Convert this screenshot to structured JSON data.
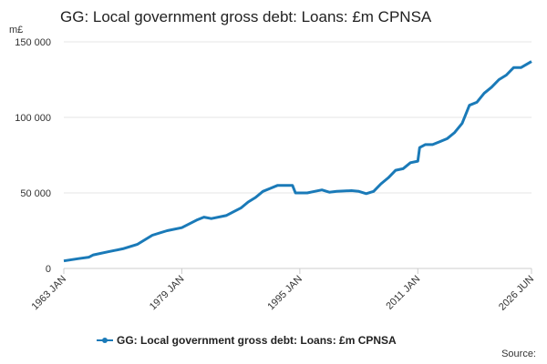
{
  "chart_data": {
    "type": "line",
    "title": "GG: Local government gross debt: Loans: £m CPNSA",
    "y_label": "m£",
    "source": "Source:",
    "x": [
      "1963 JAN",
      "1965 JAN",
      "1966 JUN",
      "1967 JAN",
      "1969 JAN",
      "1971 JAN",
      "1973 JAN",
      "1975 JAN",
      "1977 JAN",
      "1979 JAN",
      "1981 JAN",
      "1982 JAN",
      "1983 JAN",
      "1985 JAN",
      "1987 JAN",
      "1988 JAN",
      "1989 JAN",
      "1990 JAN",
      "1991 JAN",
      "1992 JAN",
      "1993 JAN",
      "1994 JAN",
      "1994 JUN",
      "1996 JAN",
      "1997 JAN",
      "1998 JAN",
      "1999 JAN",
      "2000 JAN",
      "2002 JAN",
      "2003 JAN",
      "2004 JAN",
      "2005 JAN",
      "2006 JAN",
      "2007 JAN",
      "2008 JAN",
      "2009 JAN",
      "2010 JAN",
      "2011 JAN",
      "2011 APR",
      "2012 JAN",
      "2013 JAN",
      "2014 JAN",
      "2015 JAN",
      "2016 JAN",
      "2017 JAN",
      "2018 JAN",
      "2019 JAN",
      "2020 JAN",
      "2021 JAN",
      "2022 JAN",
      "2023 JAN",
      "2024 JAN",
      "2025 JAN",
      "2026 JUN"
    ],
    "series": [
      {
        "name": "GG: Local government gross debt: Loans: £m CPNSA",
        "color": "#1a7ab8",
        "values": [
          5000,
          6500,
          7500,
          9000,
          11000,
          13000,
          16000,
          22000,
          25000,
          27000,
          32000,
          34000,
          33000,
          35000,
          40000,
          44000,
          47000,
          51000,
          53000,
          55000,
          55000,
          55000,
          50000,
          50000,
          51000,
          52000,
          50500,
          51000,
          51500,
          51000,
          49500,
          51000,
          56000,
          60000,
          65000,
          66000,
          70000,
          71000,
          80000,
          82000,
          82000,
          84000,
          86000,
          90000,
          96000,
          108000,
          110000,
          116000,
          120000,
          125000,
          128000,
          133000,
          133000,
          137000
        ]
      }
    ],
    "xlim": [
      "1963 JAN",
      "2026 JUN"
    ],
    "xticks": [
      "1963 JAN",
      "1979 JAN",
      "1995 JAN",
      "2011 JAN",
      "2026 JUN"
    ],
    "ylim": [
      0,
      150000
    ],
    "yticks": [
      0,
      {
        "value": 50000,
        "label": "50 000"
      },
      {
        "value": 100000,
        "label": "100 000"
      },
      {
        "value": 150000,
        "label": "150 000"
      }
    ],
    "grid": true
  }
}
